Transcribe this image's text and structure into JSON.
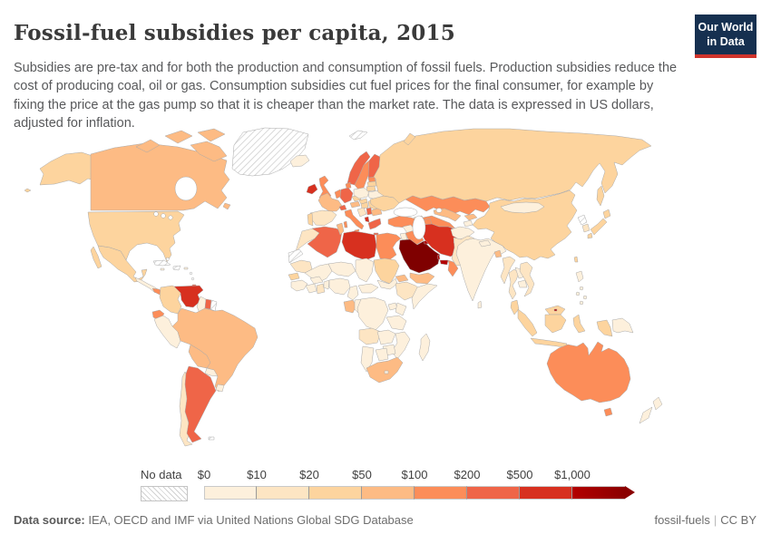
{
  "header": {
    "title": "Fossil-fuel subsidies per capita, 2015",
    "subtitle": "Subsidies are pre-tax and for both the production and consumption of fossil fuels. Production subsidies reduce the cost of producing coal, oil or gas. Consumption subsidies cut fuel prices for the final consumer, for example by fixing the price at the gas pump so that it is cheaper than the market rate. The data is expressed in US dollars, adjusted for inflation.",
    "logo": {
      "line1": "Our World",
      "line2": "in Data",
      "bg_color": "#163050",
      "accent_color": "#d0342c"
    }
  },
  "legend": {
    "no_data_label": "No data",
    "ticks": [
      "$0",
      "$10",
      "$20",
      "$50",
      "$100",
      "$200",
      "$500",
      "$1,000"
    ]
  },
  "footer": {
    "source_label": "Data source:",
    "source_text": "IEA, OECD and IMF via United Nations Global SDG Database",
    "link1": "fossil-fuels",
    "link2": "CC BY"
  },
  "chart_data": {
    "type": "heatmap",
    "variant": "world-choropleth",
    "title": "Fossil-fuel subsidies per capita, 2015",
    "year": 2015,
    "unit": "US dollars per person, adjusted for inflation",
    "legend_position": "bottom",
    "bins": [
      "$0-$10",
      "$10-$20",
      "$20-$50",
      "$50-$100",
      "$100-$200",
      "$200-$500",
      "$500-$1,000",
      ">$1,000",
      "No data"
    ],
    "bin_colors": [
      "#fdf0dc",
      "#fde5c3",
      "#fdd49e",
      "#fdbb84",
      "#fc8d59",
      "#ef6548",
      "#d7301f",
      "#b30000"
    ],
    "arrow_color": "#8a0000",
    "no_data_pattern": "diagonal-hatch",
    "countries": {
      "canada": "$50-$100",
      "usa": "$20-$50",
      "alaska": "$20-$50",
      "greenland": "No data",
      "iceland": "$0-$10",
      "mexico": "$20-$50",
      "central-america": "$0-$10",
      "panama": "$100-$200",
      "cuba": "No data",
      "hispaniola": "No data",
      "bahamas": "No data",
      "jamaica": "$0-$10",
      "puerto-rico": "$0-$10",
      "lesser-antilles": "No data",
      "trinidad": "$200-$500",
      "colombia": "$20-$50",
      "venezuela": "$500-$1,000",
      "guyana": "$0-$10",
      "suriname": "$200-$500",
      "french-guiana": "No data",
      "ecuador": "$100-$200",
      "peru": "$0-$10",
      "brazil": "$50-$100",
      "bolivia": "$50-$100",
      "paraguay": "$0-$10",
      "uruguay": "$0-$10",
      "chile": "$10-$20",
      "argentina": "$200-$500",
      "falkland-islands": "No data",
      "ireland": "$500-$1,000",
      "united-kingdom": "$100-$200",
      "norway": "$200-$500",
      "sweden": "$100-$200",
      "finland": "$200-$500",
      "denmark": "$100-$200",
      "benelux": "$100-$200",
      "germany": "$200-$500",
      "france": "$50-$100",
      "spain": "$10-$20",
      "portugal": "$20-$50",
      "switzerland": "$200-$500",
      "austria": "$50-$100",
      "czechia": "$20-$50",
      "poland": "$0-$10",
      "italy": "$100-$200",
      "hungary": "$20-$50",
      "slovakia": "$20-$50",
      "croatia-bosnia": "$10-$20",
      "serbia": "$200-$500",
      "albania": "$500-$1,000",
      "greece": "$200-$500",
      "romania": "$20-$50",
      "bulgaria": "$50-$100",
      "estonia": "$100-$200",
      "latvia": "$20-$50",
      "lithuania": "$20-$50",
      "belarus": "$0-$10",
      "ukraine": "$20-$50",
      "moldova": "$20-$50",
      "russia": "$20-$50",
      "svalbard": "No data",
      "kazakhstan": "$100-$200",
      "uzbekistan": "$50-$100",
      "turkmenistan": "$100-$200",
      "kyrgyzstan": "$50-$100",
      "tajikistan": "$0-$10",
      "georgia": "$10-$20",
      "azerbaijan": "$100-$200",
      "turkey": "$100-$200",
      "syria": "$0-$10",
      "iraq": "$100-$200",
      "jordan": "$0-$10",
      "saudi-arabia": ">$1,000",
      "kuwait": ">$1,000",
      "qatar": ">$1,000",
      "united-arab-emirates": ">$1,000",
      "oman": "$100-$200",
      "yemen": "$50-$100",
      "iran": "$500-$1,000",
      "afghanistan": "$0-$10",
      "pakistan": "$10-$20",
      "india": "$0-$10",
      "nepal": "$0-$10",
      "bangladesh": "$50-$100",
      "sri-lanka": "$0-$10",
      "china": "$20-$50",
      "mongolia": "$0-$10",
      "taiwan": "$20-$50",
      "north-korea": "No data",
      "south-korea": "$10-$20",
      "japan": "$20-$50",
      "myanmar": "$10-$20",
      "thailand": "$10-$20",
      "laos": "$0-$10",
      "cambodia": "$0-$10",
      "vietnam": "$10-$20",
      "malaysia": "$20-$50",
      "brunei": ">$1,000",
      "indonesia": "$20-$50",
      "philippines": "$0-$10",
      "papua-new-guinea": "$0-$10",
      "australia": "$100-$200",
      "new-zealand": "$0-$10",
      "morocco": "$10-$20",
      "western-sahara": "No data",
      "algeria": "$200-$500",
      "tunisia": "$50-$100",
      "libya": "$500-$1,000",
      "egypt": "$100-$200",
      "mauritania": "$10-$20",
      "mali": "$0-$10",
      "niger": "$0-$10",
      "chad": "$0-$10",
      "sudan": "$20-$50",
      "south-sudan": "$0-$10",
      "eritrea": "$50-$100",
      "ethiopia": "$10-$20",
      "somalia": "$0-$10",
      "senegal": "$20-$50",
      "guinea-region": "$0-$10",
      "ivory-coast": "$0-$10",
      "ghana": "$10-$20",
      "burkina-faso": "$0-$10",
      "benin-togo": "$0-$10",
      "nigeria": "$0-$10",
      "cameroon": "$0-$10",
      "central-african-republic": "$0-$10",
      "gabon": "$50-$100",
      "congo": "$0-$10",
      "dr-congo": "$0-$10",
      "uganda": "$0-$10",
      "kenya": "$0-$10",
      "tanzania": "$0-$10",
      "angola": "$10-$20",
      "zambia": "$0-$10",
      "mozambique": "$0-$10",
      "zimbabwe": "$0-$10",
      "botswana": "$0-$10",
      "namibia": "$0-$10",
      "south-africa": "$50-$100",
      "lesotho": "$0-$10",
      "madagascar": "$0-$10"
    }
  },
  "map": {
    "border_color": "#a9a9a9",
    "sea_color": "#ffffff",
    "fill_overrides": {
      "saudi-arabia": "#7f0000"
    }
  }
}
